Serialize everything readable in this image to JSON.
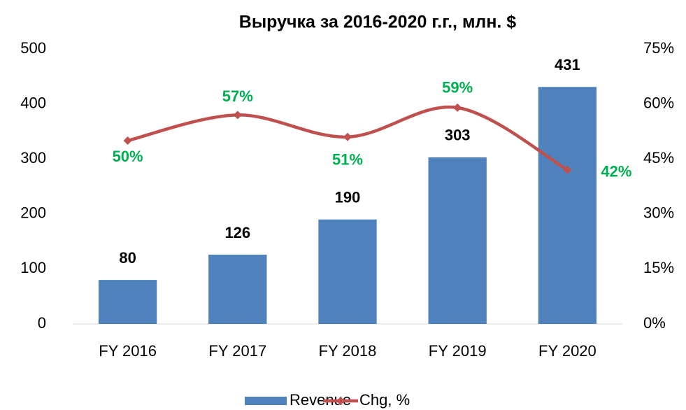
{
  "chart_data": {
    "type": "bar",
    "title": "Выручка за 2016-2020 г.г., млн. $",
    "categories": [
      "FY 2016",
      "FY 2017",
      "FY 2018",
      "FY 2019",
      "FY 2020"
    ],
    "series": [
      {
        "name": "Revenue",
        "color": "#4f81bd",
        "type": "bar",
        "values": [
          80,
          126,
          190,
          303,
          431
        ]
      },
      {
        "name": "Chg, %",
        "color": "#c0504d",
        "type": "line",
        "axis": "y2",
        "values": [
          50,
          57,
          51,
          59,
          42
        ],
        "value_labels": [
          "50%",
          "57%",
          "51%",
          "59%",
          "42%"
        ],
        "label_color": "#00b050"
      }
    ],
    "ylim": [
      0,
      500
    ],
    "yticks": [
      0,
      100,
      200,
      300,
      400,
      500
    ],
    "y2lim": [
      0,
      75
    ],
    "y2ticks": [
      {
        "value": 0,
        "label": "0%"
      },
      {
        "value": 15,
        "label": "15%"
      },
      {
        "value": 30,
        "label": "30%"
      },
      {
        "value": 45,
        "label": "45%"
      },
      {
        "value": 60,
        "label": "60%"
      },
      {
        "value": 75,
        "label": "75%"
      }
    ],
    "legend": "bottom"
  }
}
